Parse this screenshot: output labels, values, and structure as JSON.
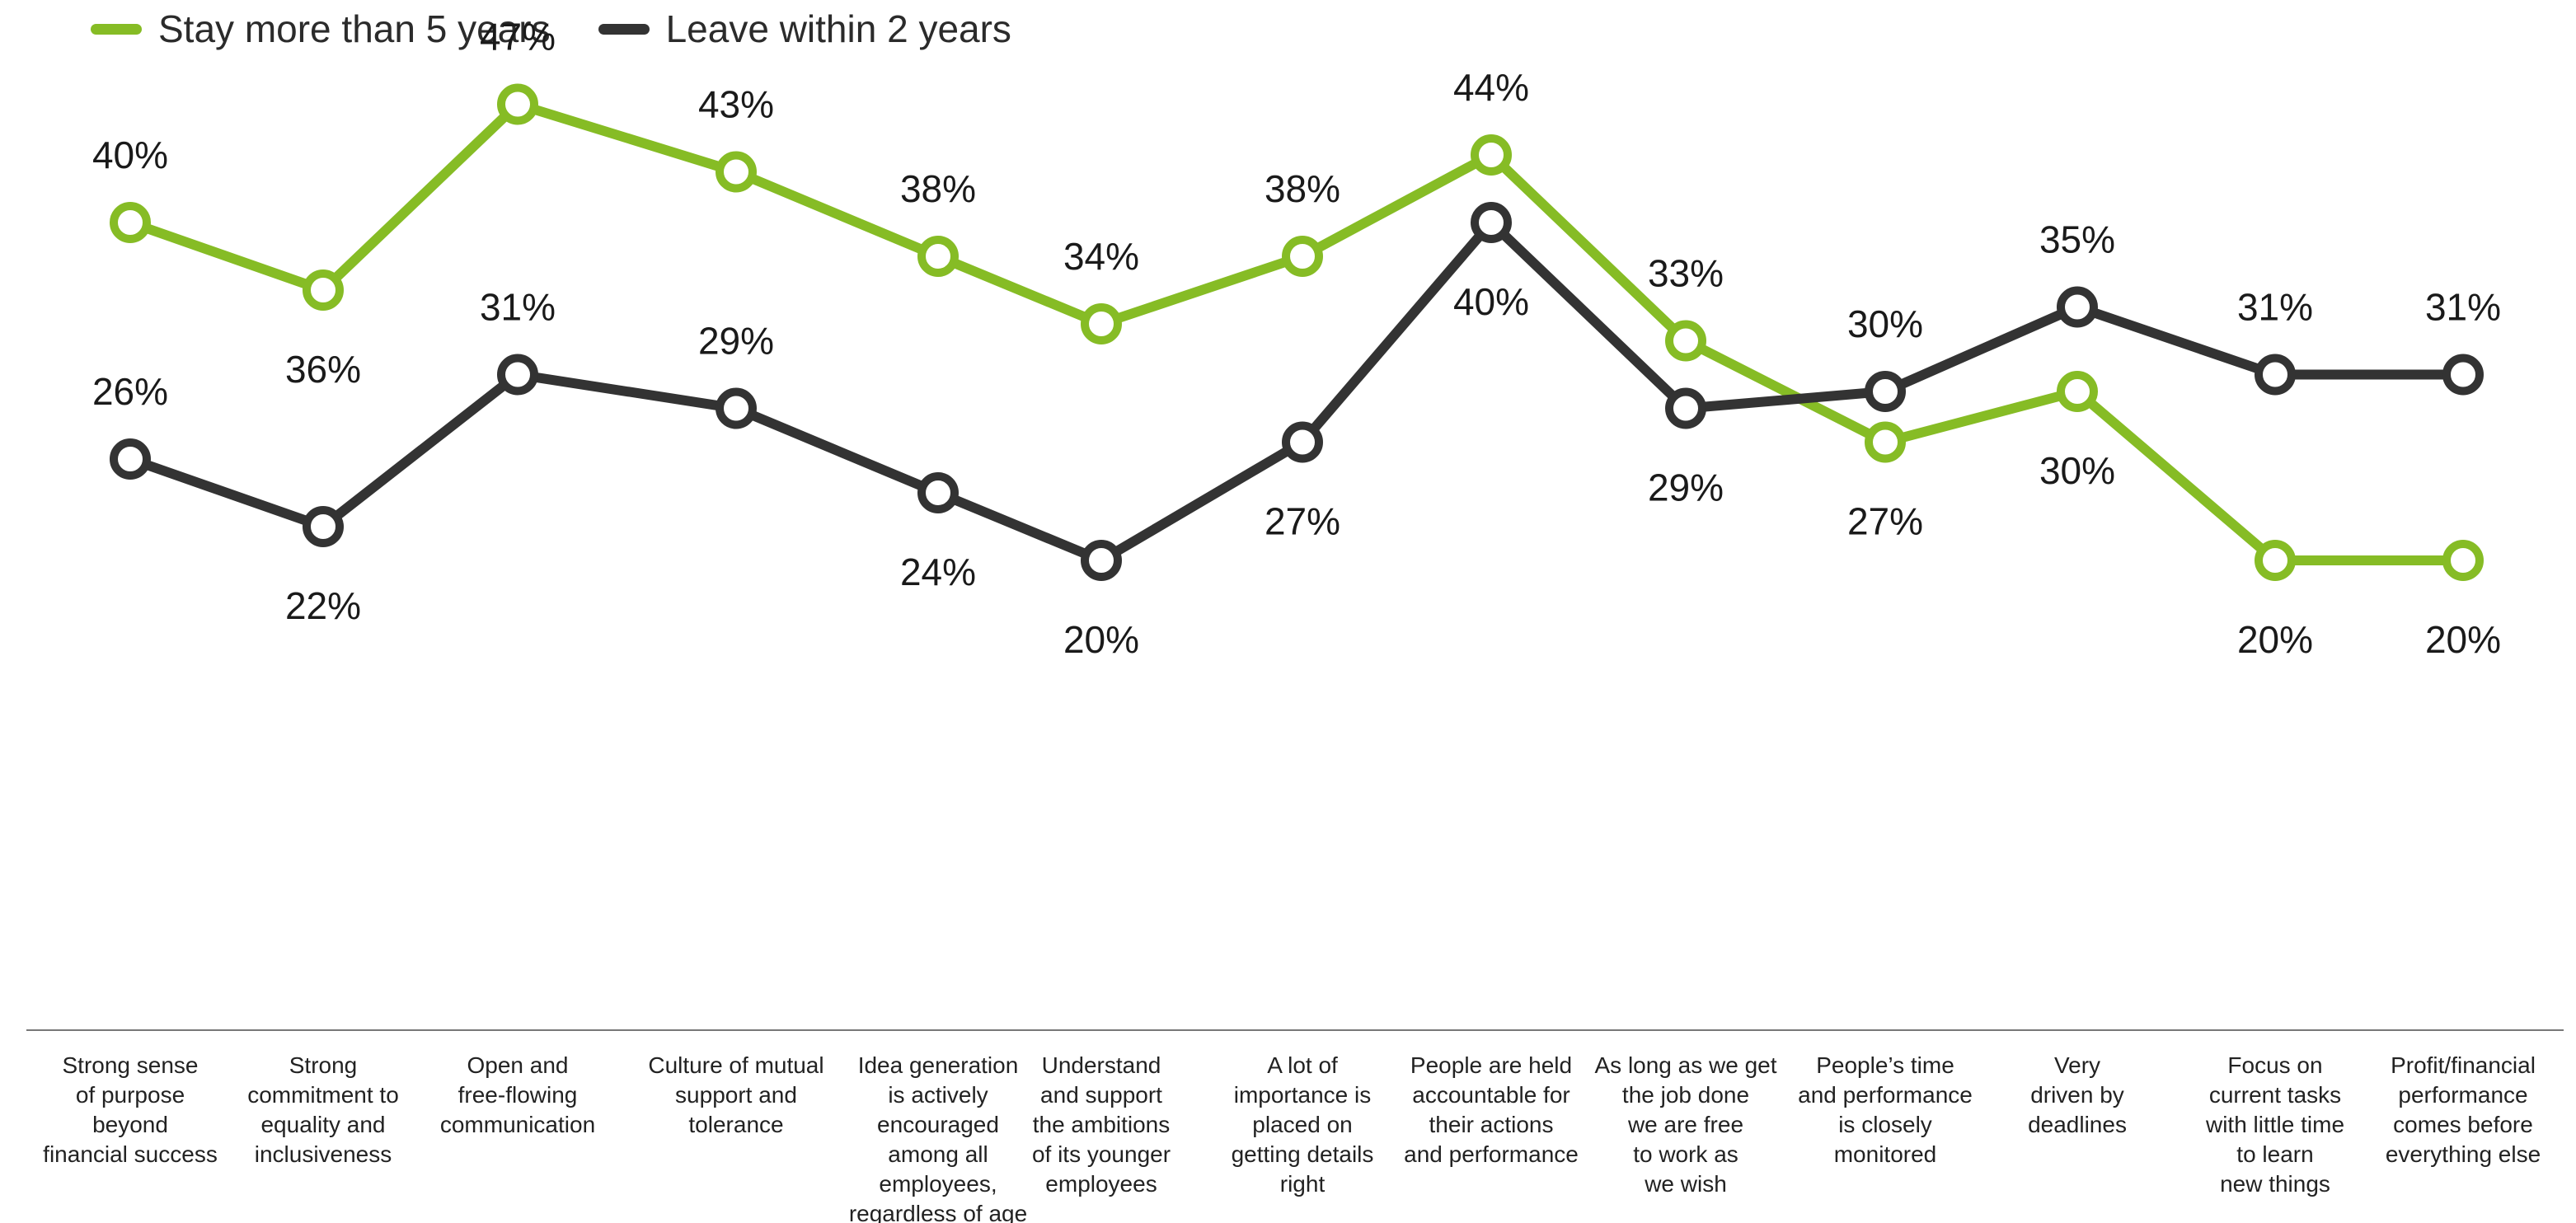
{
  "chart_data": {
    "type": "line",
    "categories": [
      [
        "Strong sense",
        "of purpose",
        "beyond",
        "financial success"
      ],
      [
        "Strong",
        "commitment to",
        "equality and",
        "inclusiveness"
      ],
      [
        "Open and",
        "free-flowing",
        "communication"
      ],
      [
        "Culture of mutual",
        "support and",
        "tolerance"
      ],
      [
        "Idea generation",
        "is actively",
        "encouraged",
        "among all",
        "employees,",
        "regardless of age"
      ],
      [
        "Understand",
        "and support",
        "the ambitions",
        "of its younger",
        "employees"
      ],
      [
        "A lot of",
        "importance is",
        "placed on",
        "getting details",
        "right"
      ],
      [
        "People are held",
        "accountable for",
        "their actions",
        "and performance"
      ],
      [
        "As long as we get",
        "the job done",
        "we are free",
        "to work as",
        "we wish"
      ],
      [
        "People’s time",
        "and performance",
        "is closely",
        "monitored"
      ],
      [
        "Very",
        "driven by",
        "deadlines"
      ],
      [
        "Focus on",
        "current tasks",
        "with little time",
        "to learn",
        "new things"
      ],
      [
        "Profit/financial",
        "performance",
        "comes before",
        "everything else"
      ]
    ],
    "series": [
      {
        "name": "Stay more than 5 years",
        "color": "#86bc25",
        "values": [
          40,
          36,
          47,
          43,
          38,
          34,
          38,
          44,
          33,
          27,
          30,
          20,
          20
        ],
        "labels": [
          "40%",
          "36%",
          "47%",
          "43%",
          "38%",
          "34%",
          "38%",
          "44%",
          "33%",
          "27%",
          "30%",
          "20%",
          "20%"
        ],
        "label_pos": [
          "above",
          "below",
          "above",
          "above",
          "above",
          "above",
          "above",
          "above",
          "above",
          "below",
          "below",
          "below",
          "below"
        ]
      },
      {
        "name": "Leave within 2 years",
        "color": "#333333",
        "values": [
          26,
          22,
          31,
          29,
          24,
          20,
          27,
          40,
          29,
          30,
          35,
          31,
          31
        ],
        "labels": [
          "26%",
          "22%",
          "31%",
          "29%",
          "24%",
          "20%",
          "27%",
          "40%",
          "29%",
          "30%",
          "35%",
          "31%",
          "31%"
        ],
        "label_pos": [
          "above",
          "below",
          "above",
          "above",
          "below",
          "below",
          "below",
          "below",
          "below",
          "above",
          "above",
          "above",
          "above"
        ]
      }
    ],
    "legend": "top-left",
    "grid": false
  }
}
